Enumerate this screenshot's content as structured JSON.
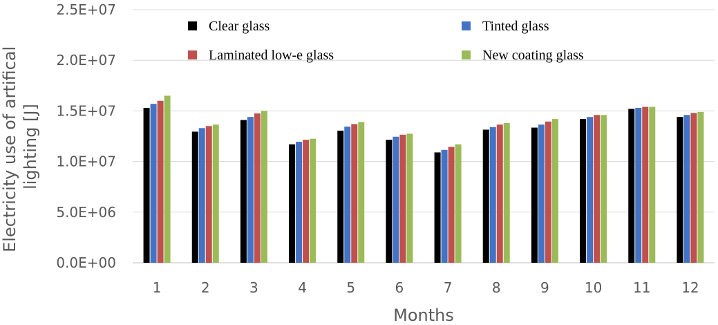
{
  "chart_data": {
    "type": "bar",
    "categories": [
      "1",
      "2",
      "3",
      "4",
      "5",
      "6",
      "7",
      "8",
      "9",
      "10",
      "11",
      "12"
    ],
    "series": [
      {
        "name": "Clear glass",
        "color": "#000000",
        "values": [
          15300000,
          12950000,
          14100000,
          11700000,
          13050000,
          12150000,
          10900000,
          13150000,
          13350000,
          14200000,
          15200000,
          14400000
        ]
      },
      {
        "name": "Tinted glass",
        "color": "#4472C4",
        "values": [
          15700000,
          13300000,
          14400000,
          11950000,
          13450000,
          12450000,
          11150000,
          13400000,
          13650000,
          14400000,
          15300000,
          14600000
        ]
      },
      {
        "name": "Laminated low-e glass",
        "color": "#C0504D",
        "values": [
          16000000,
          13500000,
          14750000,
          12150000,
          13700000,
          12650000,
          11450000,
          13650000,
          13950000,
          14600000,
          15400000,
          14800000
        ]
      },
      {
        "name": "New coating glass",
        "color": "#9BBB59",
        "values": [
          16500000,
          13650000,
          15000000,
          12250000,
          13900000,
          12750000,
          11700000,
          13800000,
          14200000,
          14600000,
          15400000,
          14900000
        ]
      }
    ],
    "xlabel": "Months",
    "ylabel": [
      "Electricity use of artifical",
      "lighting [J]"
    ],
    "ylim": [
      0,
      25000000
    ],
    "yticks": [
      0,
      5000000,
      10000000,
      15000000,
      20000000,
      25000000
    ],
    "ytick_labels": [
      "0.0E+00",
      "5.0E+06",
      "1.0E+07",
      "1.5E+07",
      "2.0E+07",
      "2.5E+07"
    ],
    "grid": true,
    "legend_position": "top"
  }
}
